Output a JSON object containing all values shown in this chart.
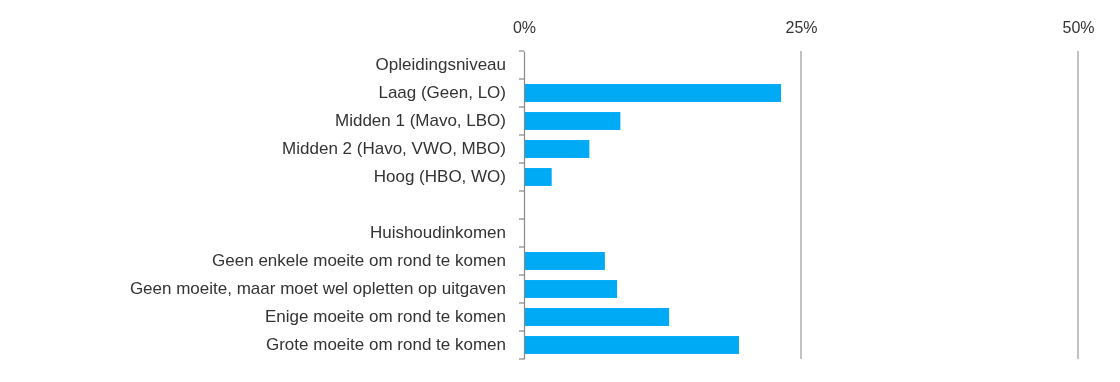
{
  "chart_data": {
    "type": "bar",
    "orientation": "horizontal",
    "categories": [
      "Opleidingsniveau",
      "Laag (Geen, LO)",
      "Midden 1 (Mavo, LBO)",
      "Midden 2 (Havo, VWO, MBO)",
      "Hoog (HBO, WO)",
      null,
      "Huishoudinkomen",
      "Geen enkele moeite om rond te komen",
      "Geen moeite, maar moet wel opletten op uitgaven",
      "Enige moeite om rond te komen",
      "Grote moeite om rond te komen"
    ],
    "values": [
      null,
      23.2,
      8.7,
      5.9,
      2.5,
      null,
      null,
      7.3,
      8.4,
      13.1,
      19.4
    ],
    "color": "#00aaf5",
    "xlim": [
      0,
      50
    ],
    "xticks": [
      {
        "value": 0,
        "label": "0%"
      },
      {
        "value": 25,
        "label": "25%"
      },
      {
        "value": 50,
        "label": "50%"
      }
    ],
    "grid": "x"
  }
}
